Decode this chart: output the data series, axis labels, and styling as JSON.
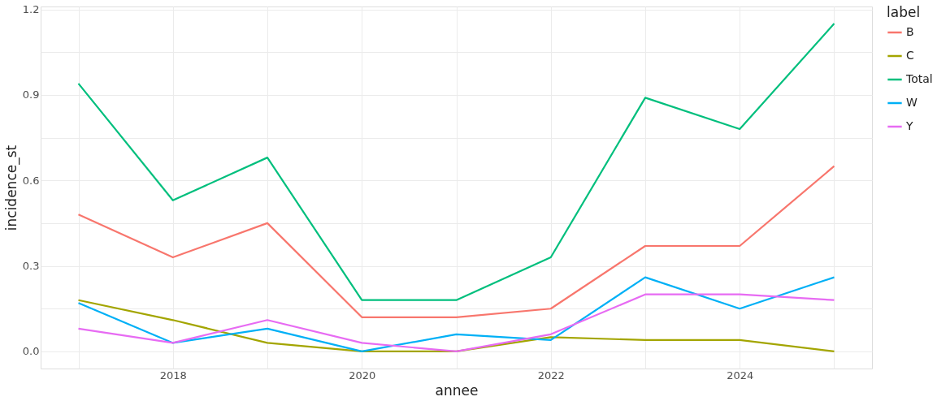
{
  "chart_data": {
    "type": "line",
    "xlabel": "annee",
    "ylabel": "incidence_st",
    "legend_title": "label",
    "legend": "right",
    "grid": true,
    "line_style": "solid",
    "x": [
      2017,
      2018,
      2019,
      2020,
      2021,
      2022,
      2023,
      2024,
      2025
    ],
    "xlim": [
      2016.6,
      2025.4
    ],
    "xticks": [
      {
        "value": 2017,
        "label": null
      },
      2018,
      {
        "value": 2019,
        "label": null
      },
      2020,
      {
        "value": 2021,
        "label": null
      },
      2022,
      {
        "value": 2023,
        "label": null
      },
      2024,
      {
        "value": 2025,
        "label": null
      }
    ],
    "ylim": [
      -0.06,
      1.21
    ],
    "yticks": [
      {
        "value": 0,
        "label": "0.0"
      },
      {
        "value": 0.15,
        "label": null
      },
      0.3,
      {
        "value": 0.45,
        "label": null
      },
      0.6,
      {
        "value": 0.75,
        "label": null
      },
      0.9,
      {
        "value": 1.05,
        "label": null
      },
      1.2
    ],
    "series": [
      {
        "name": "B",
        "color": "#f8766d",
        "values": [
          0.48,
          0.33,
          0.45,
          0.12,
          0.12,
          0.15,
          0.37,
          0.37,
          0.65
        ]
      },
      {
        "name": "C",
        "color": "#a3a500",
        "values": [
          0.18,
          0.11,
          0.03,
          0.0,
          0.0,
          0.05,
          0.04,
          0.04,
          0.0
        ]
      },
      {
        "name": "Total",
        "color": "#00bf7d",
        "values": [
          0.94,
          0.53,
          0.68,
          0.18,
          0.18,
          0.33,
          0.89,
          0.78,
          1.15
        ]
      },
      {
        "name": "W",
        "color": "#00b0f6",
        "values": [
          0.17,
          0.03,
          0.08,
          0.0,
          0.06,
          0.04,
          0.26,
          0.15,
          0.26
        ]
      },
      {
        "name": "Y",
        "color": "#e76bf3",
        "values": [
          0.08,
          0.03,
          0.11,
          0.03,
          0.0,
          0.06,
          0.2,
          0.2,
          0.18
        ]
      }
    ]
  }
}
